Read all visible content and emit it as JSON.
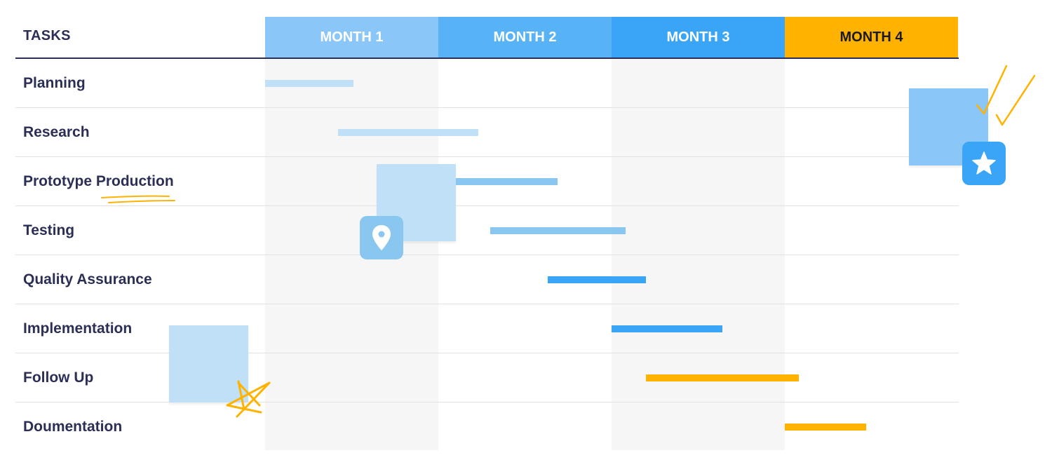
{
  "tasks_header": "TASKS",
  "chart_data": {
    "type": "gantt",
    "x_unit": "month",
    "xlim": [
      0,
      4
    ],
    "months": [
      {
        "label": "MONTH 1",
        "color": "#8ac7f8",
        "text_color": "#ffffff",
        "shaded": true
      },
      {
        "label": "MONTH 2",
        "color": "#58b2f6",
        "text_color": "#ffffff",
        "shaded": false
      },
      {
        "label": "MONTH 3",
        "color": "#3aa5f6",
        "text_color": "#ffffff",
        "shaded": true
      },
      {
        "label": "MONTH 4",
        "color": "#ffb300",
        "text_color": "#1a1a1a",
        "shaded": false
      }
    ],
    "tasks": [
      {
        "label": "Planning",
        "start": 0.0,
        "end": 0.51,
        "color": "#bfe0f6"
      },
      {
        "label": "Research",
        "start": 0.42,
        "end": 1.23,
        "color": "#bfe0f6"
      },
      {
        "label": "Prototype Production",
        "start": 1.0,
        "end": 1.69,
        "color": "#8ac7f0"
      },
      {
        "label": "Testing",
        "start": 1.3,
        "end": 2.08,
        "color": "#8ac7f0"
      },
      {
        "label": "Quality Assurance",
        "start": 1.63,
        "end": 2.2,
        "color": "#3aa5f6"
      },
      {
        "label": "Implementation",
        "start": 2.0,
        "end": 2.64,
        "color": "#3aa5f6"
      },
      {
        "label": "Follow Up",
        "start": 2.2,
        "end": 3.08,
        "color": "#ffb300"
      },
      {
        "label": "Doumentation",
        "start": 3.0,
        "end": 3.47,
        "color": "#ffb300"
      }
    ]
  },
  "decor": {
    "note_colors": {
      "light": "#bfe0f6",
      "mid": "#8ac7f8"
    },
    "badge_colors": {
      "pin": "#8ac7f0",
      "star": "#3aa5f6"
    },
    "accent": "#ffb300",
    "icons": [
      "location-pin-icon",
      "star-icon",
      "sketch-star-icon",
      "check-icon"
    ]
  }
}
